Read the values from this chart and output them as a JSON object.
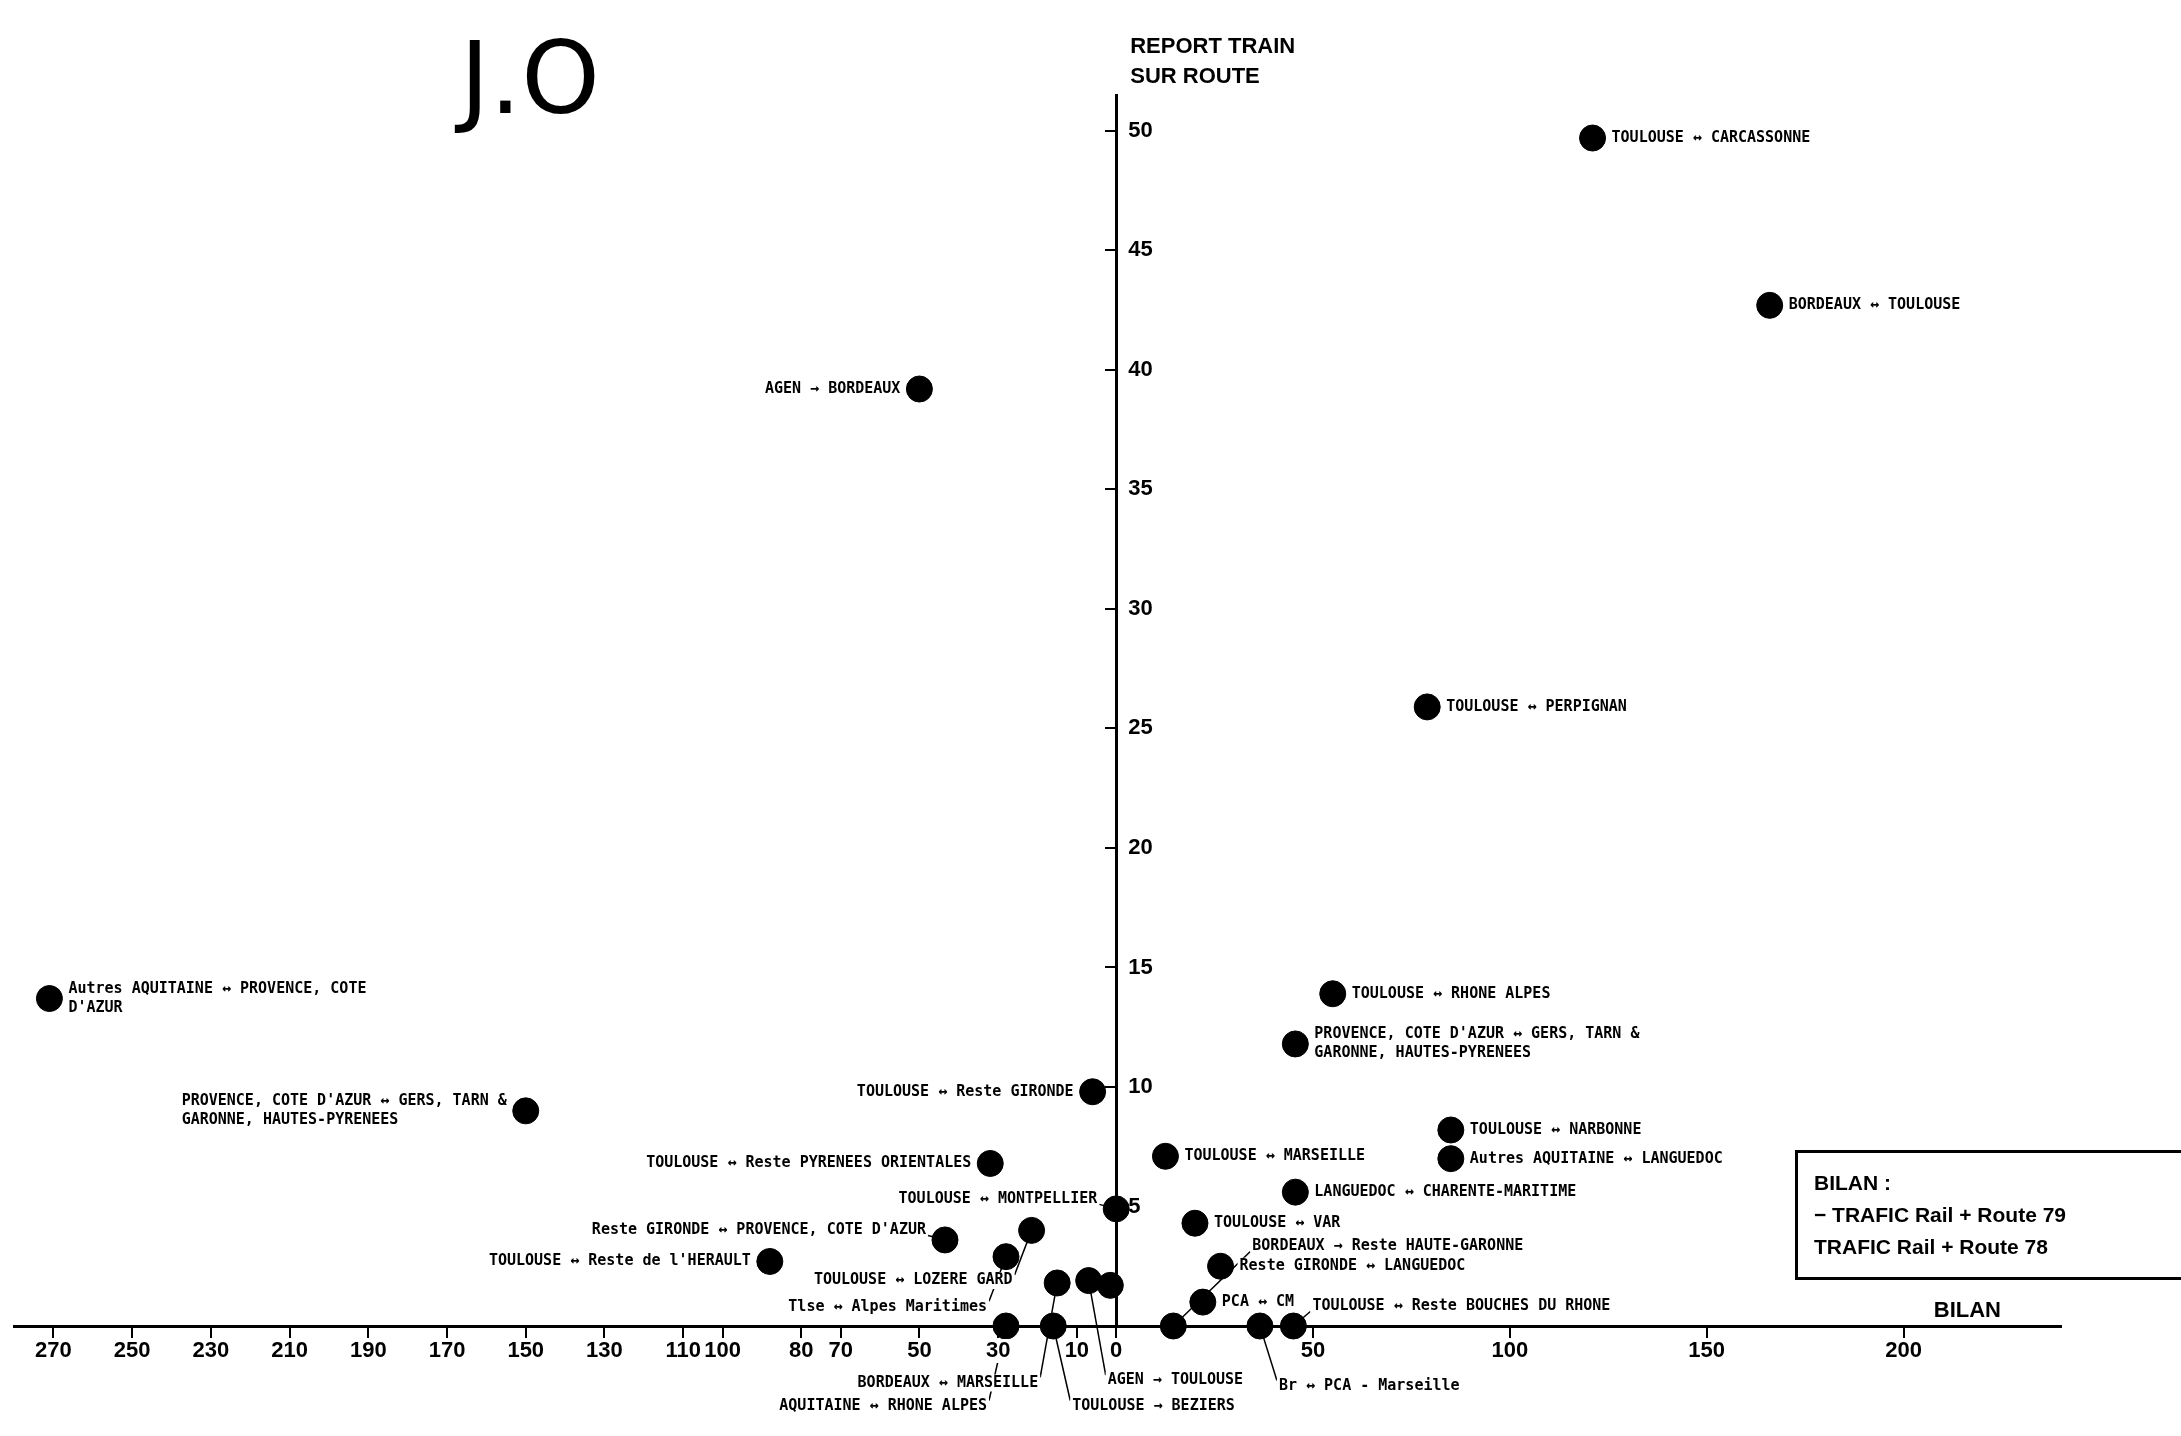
{
  "chart_data": {
    "type": "scatter",
    "title": "J.O",
    "xlabel": "BILAN",
    "ylabel": "REPORT TRAIN\nSUR ROUTE",
    "x": [
      121,
      166,
      -50,
      79,
      -271,
      55,
      45.5,
      -150,
      -6,
      85,
      85,
      -32,
      12.5,
      45.5,
      0,
      20,
      -21.5,
      -43.5,
      -88,
      -28,
      -15,
      -7,
      -1.5,
      26.5,
      22,
      36.5,
      45,
      -28,
      -16,
      14.5
    ],
    "values": [
      49.7,
      42.7,
      39.2,
      25.9,
      13.7,
      13.9,
      11.8,
      9.0,
      9.8,
      8.2,
      7.0,
      6.8,
      7.1,
      5.6,
      4.9,
      4.3,
      4.0,
      3.6,
      2.7,
      2.9,
      1.8,
      1.9,
      1.7,
      2.5,
      1.0,
      0,
      0,
      0,
      0,
      0
    ],
    "color": "#000000",
    "marker": "circle",
    "grid": false,
    "legend": false,
    "xlim": [
      -280,
      240
    ],
    "ylim": [
      0,
      51.5
    ],
    "xticks": [
      {
        "value": -270,
        "label": "270"
      },
      {
        "value": -250,
        "label": "250"
      },
      {
        "value": -230,
        "label": "230"
      },
      {
        "value": -210,
        "label": "210"
      },
      {
        "value": -190,
        "label": "190"
      },
      {
        "value": -170,
        "label": "170"
      },
      {
        "value": -150,
        "label": "150"
      },
      {
        "value": -130,
        "label": "130"
      },
      {
        "value": -110,
        "label": "110"
      },
      {
        "value": -100,
        "label": "100"
      },
      {
        "value": -80,
        "label": "80"
      },
      {
        "value": -70,
        "label": "70"
      },
      {
        "value": -50,
        "label": "50"
      },
      {
        "value": -30,
        "label": "30"
      },
      {
        "value": -10,
        "label": "10"
      },
      0,
      50,
      100,
      150,
      200
    ],
    "yticks": [
      5,
      10,
      15,
      20,
      25,
      30,
      35,
      40,
      45,
      50
    ],
    "annotations": [
      {
        "text": "TOULOUSE ↔ CARCASSONNE",
        "x": 121,
        "y": 49.7
      },
      {
        "text": "BORDEAUX ↔ TOULOUSE",
        "x": 166,
        "y": 42.7
      },
      {
        "text": "AGEN → BORDEAUX",
        "x": -50,
        "y": 39.2
      },
      {
        "text": "TOULOUSE ↔ PERPIGNAN",
        "x": 79,
        "y": 25.9
      },
      {
        "text": "Autres AQUITAINE ↔ PROVENCE, COTE\nD'AZUR",
        "x": -271,
        "y": 13.7
      },
      {
        "text": "TOULOUSE ↔ RHONE ALPES",
        "x": 55,
        "y": 13.9
      },
      {
        "text": "PROVENCE, COTE D'AZUR ↔ GERS, TARN &\nGARONNE, HAUTES-PYRENEES",
        "x": 45.5,
        "y": 11.8
      },
      {
        "text": "PROVENCE, COTE D'AZUR ↔ GERS, TARN &\nGARONNE, HAUTES-PYRENEES",
        "x": -150,
        "y": 9.0
      },
      {
        "text": "TOULOUSE ↔ Reste GIRONDE",
        "x": -6,
        "y": 9.8
      },
      {
        "text": "TOULOUSE ↔ NARBONNE",
        "x": 85,
        "y": 8.2
      },
      {
        "text": "Autres AQUITAINE ↔ LANGUEDOC",
        "x": 85,
        "y": 7.0
      },
      {
        "text": "TOULOUSE ↔ Reste PYRENEES ORIENTALES",
        "x": -32,
        "y": 6.8
      },
      {
        "text": "TOULOUSE ↔ MARSEILLE",
        "x": 12.5,
        "y": 7.1
      },
      {
        "text": "LANGUEDOC ↔ CHARENTE-MARITIME",
        "x": 45.5,
        "y": 5.6
      },
      {
        "text": "TOULOUSE ↔ MONTPELLIER",
        "x": 0,
        "y": 4.9
      },
      {
        "text": "TOULOUSE ↔ VAR",
        "x": 20,
        "y": 4.3
      },
      {
        "text": "TOULOUSE ↔ LOZERE GARD",
        "x": -21.5,
        "y": 4.0
      },
      {
        "text": "Reste GIRONDE ↔ PROVENCE, COTE D'AZUR",
        "x": -43.5,
        "y": 3.6
      },
      {
        "text": "TOULOUSE ↔ Reste de l'HERAULT",
        "x": -88,
        "y": 2.7
      },
      {
        "text": "Tlse ↔ Alpes Maritimes",
        "x": -28,
        "y": 2.9
      },
      {
        "text": "BORDEAUX ↔ MARSEILLE",
        "x": -15,
        "y": 1.8
      },
      {
        "text": "AGEN → TOULOUSE",
        "x": -7,
        "y": 1.9
      },
      {
        "text": "Reste GIRONDE ↔ LANGUEDOC",
        "x": 26.5,
        "y": 2.5
      },
      {
        "text": "PCA ↔ CM",
        "x": 22,
        "y": 1.0
      },
      {
        "text": "Br ↔ PCA - Marseille",
        "x": 36.5,
        "y": 0
      },
      {
        "text": "TOULOUSE ↔ Reste BOUCHES DU RHONE",
        "x": 45,
        "y": 0
      },
      {
        "text": "AQUITAINE ↔ RHONE ALPES",
        "x": -28,
        "y": 0
      },
      {
        "text": "TOULOUSE → BEZIERS",
        "x": -16,
        "y": 0
      },
      {
        "text": "BORDEAUX → Reste HAUTE-GARONNE",
        "x": 14.5,
        "y": 0
      },
      "BILAN :",
      "− TRAFIC Rail + Route 79",
      "TRAFIC Rail + Route 78"
    ]
  }
}
